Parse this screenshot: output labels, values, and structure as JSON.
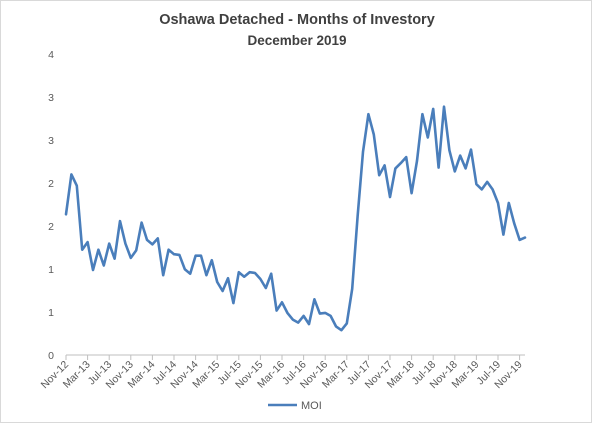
{
  "chart_data": {
    "type": "line",
    "title": "Oshawa Detached - Months of Investory",
    "subtitle": "December 2019",
    "xlabel": "",
    "ylabel": "",
    "ylim": [
      0,
      4
    ],
    "y_ticks": [
      "0",
      "1",
      "1",
      "2",
      "2",
      "3",
      "3",
      "4"
    ],
    "x_tick_labels": [
      "Nov-12",
      "Mar-13",
      "Jul-13",
      "Nov-13",
      "Mar-14",
      "Jul-14",
      "Nov-14",
      "Mar-15",
      "Jul-15",
      "Nov-15",
      "Mar-16",
      "Jul-16",
      "Nov-16",
      "Mar-17",
      "Jul-17",
      "Nov-17",
      "Mar-18",
      "Jul-18",
      "Nov-18",
      "Mar-19",
      "Jul-19",
      "Nov-19"
    ],
    "grid": false,
    "legend_position": "bottom",
    "color": "#4a7ebb",
    "series": [
      {
        "name": "MOI",
        "values": [
          1.87,
          2.4,
          2.25,
          1.4,
          1.5,
          1.13,
          1.4,
          1.19,
          1.48,
          1.28,
          1.78,
          1.48,
          1.29,
          1.39,
          1.76,
          1.53,
          1.47,
          1.55,
          1.06,
          1.4,
          1.34,
          1.33,
          1.14,
          1.08,
          1.32,
          1.32,
          1.06,
          1.26,
          0.97,
          0.85,
          1.02,
          0.69,
          1.1,
          1.04,
          1.1,
          1.09,
          1.01,
          0.89,
          1.08,
          0.59,
          0.7,
          0.56,
          0.47,
          0.43,
          0.52,
          0.41,
          0.74,
          0.55,
          0.56,
          0.52,
          0.38,
          0.33,
          0.42,
          0.88,
          1.84,
          2.7,
          3.2,
          2.93,
          2.39,
          2.52,
          2.1,
          2.48,
          2.55,
          2.63,
          2.15,
          2.58,
          3.2,
          2.89,
          3.27,
          2.49,
          3.3,
          2.72,
          2.44,
          2.65,
          2.48,
          2.73,
          2.27,
          2.2,
          2.3,
          2.2,
          2.02,
          1.6,
          2.02,
          1.75,
          1.53,
          1.56
        ]
      }
    ]
  }
}
